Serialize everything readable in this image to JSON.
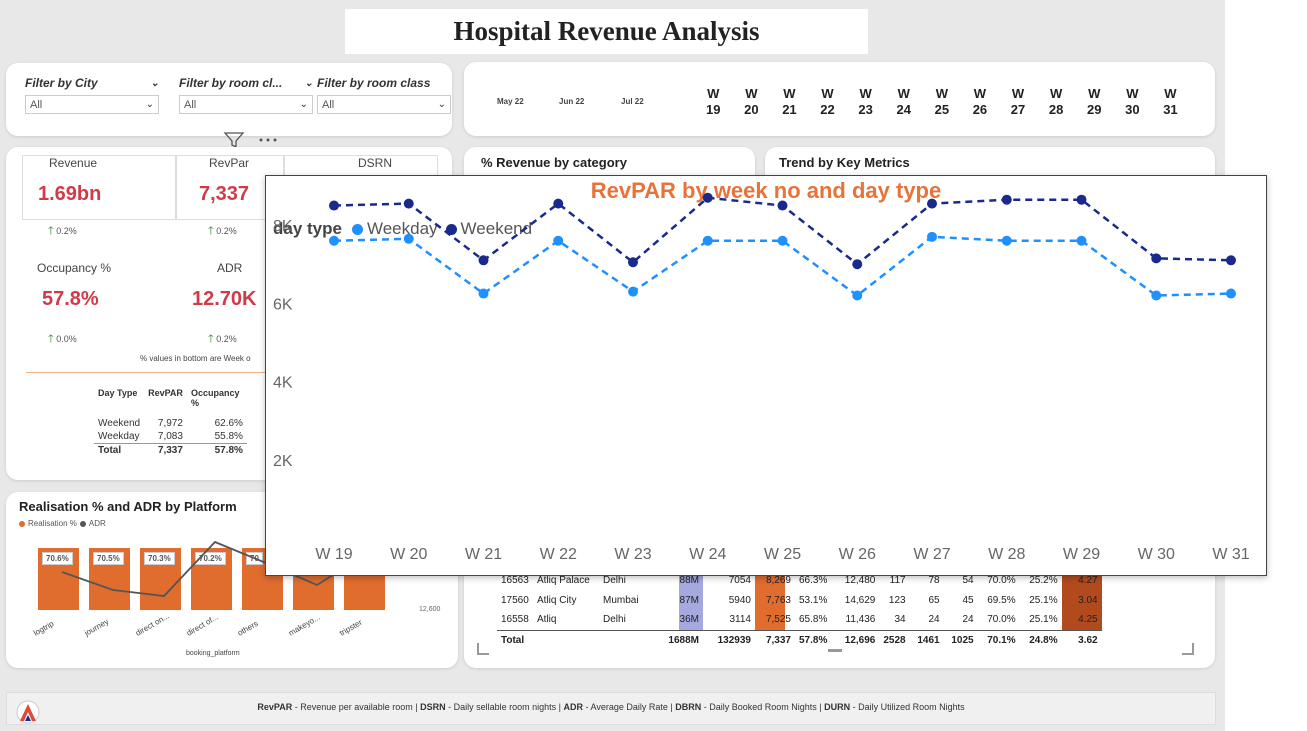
{
  "title": "Hospital Revenue Analysis",
  "filters": [
    {
      "label": "Filter by City",
      "value": "All"
    },
    {
      "label": "Filter by room cl...",
      "value": "All"
    },
    {
      "label": "Filter by room class",
      "value": "All"
    }
  ],
  "months": [
    "May 22",
    "Jun 22",
    "Jul 22"
  ],
  "weeks": [
    "W 19",
    "W 20",
    "W 21",
    "W 22",
    "W 23",
    "W 24",
    "W 25",
    "W 26",
    "W 27",
    "W 28",
    "W 29",
    "W 30",
    "W 31"
  ],
  "kpis": {
    "revenue": {
      "label": "Revenue",
      "value": "1.69bn",
      "delta": "0.2%"
    },
    "revpar": {
      "label": "RevPar",
      "value": "7,337",
      "delta": "0.2%"
    },
    "dsrn": {
      "label": "DSRN"
    },
    "occupancy": {
      "label": "Occupancy %",
      "value": "57.8%",
      "delta": "0.0%"
    },
    "adr": {
      "label": "ADR",
      "value": "12.70K",
      "delta": "0.2%"
    },
    "note": "% values in bottom are Week o"
  },
  "day_type_table": {
    "headers": [
      "Day Type",
      "RevPAR",
      "Occupancy %"
    ],
    "rows": [
      [
        "Weekend",
        "7,972",
        "62.6%"
      ],
      [
        "Weekday",
        "7,083",
        "55.8%"
      ]
    ],
    "total": [
      "Total",
      "7,337",
      "57.8%"
    ]
  },
  "sections": {
    "revenue_by_category": "% Revenue by category",
    "trend": "Trend by Key Metrics",
    "platform": "Realisation % and ADR by Platform"
  },
  "platform_chart": {
    "legend": [
      "Realisation %",
      "ADR"
    ],
    "platforms": [
      "logtrip",
      "journey",
      "direct on...",
      "direct of...",
      "others",
      "makeyo...",
      "tripster"
    ],
    "realisation_labels": [
      "70.6%",
      "70.5%",
      "70.3%",
      "70.2%",
      "70"
    ],
    "axis_label": "booking_platform",
    "adr_tick": "12,600"
  },
  "property_table": {
    "rows": [
      [
        "16563",
        "Atliq Palace",
        "Delhi",
        "88M",
        "7054",
        "8,269",
        "66.3%",
        "12,480",
        "117",
        "78",
        "54",
        "70.0%",
        "25.2%",
        "4.27"
      ],
      [
        "17560",
        "Atliq City",
        "Mumbai",
        "87M",
        "5940",
        "7,763",
        "53.1%",
        "14,629",
        "123",
        "65",
        "45",
        "69.5%",
        "25.1%",
        "3.04"
      ],
      [
        "16558",
        "Atliq",
        "Delhi",
        "36M",
        "3114",
        "7,525",
        "65.8%",
        "11,436",
        "34",
        "24",
        "24",
        "70.0%",
        "25.1%",
        "4.25"
      ]
    ],
    "total": [
      "Total",
      "",
      "",
      "1688M",
      "132939",
      "7,337",
      "57.8%",
      "12,696",
      "2528",
      "1461",
      "1025",
      "70.1%",
      "24.8%",
      "3.62"
    ]
  },
  "overlay": {
    "title": "RevPAR by week no and day type",
    "legend_title": "day type",
    "y_ticks": [
      "2K",
      "4K",
      "6K",
      "8K"
    ]
  },
  "chart_data": {
    "type": "line",
    "title": "RevPAR by week no and day type",
    "x": [
      "W 19",
      "W 20",
      "W 21",
      "W 22",
      "W 23",
      "W 24",
      "W 25",
      "W 26",
      "W 27",
      "W 28",
      "W 29",
      "W 30",
      "W 31"
    ],
    "series": [
      {
        "name": "Weekday",
        "color": "#1e90ff",
        "values": [
          7600,
          7650,
          6250,
          7600,
          6300,
          7600,
          7600,
          6200,
          7700,
          7600,
          7600,
          6200,
          6250
        ]
      },
      {
        "name": "Weekend",
        "color": "#1a2a8c",
        "values": [
          8500,
          8550,
          7100,
          8550,
          7050,
          8700,
          8500,
          7000,
          8550,
          8650,
          8650,
          7150,
          7100
        ]
      }
    ],
    "ylim": [
      0,
      9000
    ],
    "y_ticks": [
      2000,
      4000,
      6000,
      8000
    ],
    "legend": "top-left",
    "grid": false
  },
  "footer": "RevPAR - Revenue per available room | DSRN - Daily sellable room nights | ADR - Average Daily Rate | DBRN - Daily Booked Room Nights | DURN - Daily Utilized Room Nights",
  "colors": {
    "accent": "#e8733a",
    "kpi": "#d13a47",
    "weekday": "#1e90ff",
    "weekend": "#1a2a8c",
    "bar": "#e06c2e"
  }
}
